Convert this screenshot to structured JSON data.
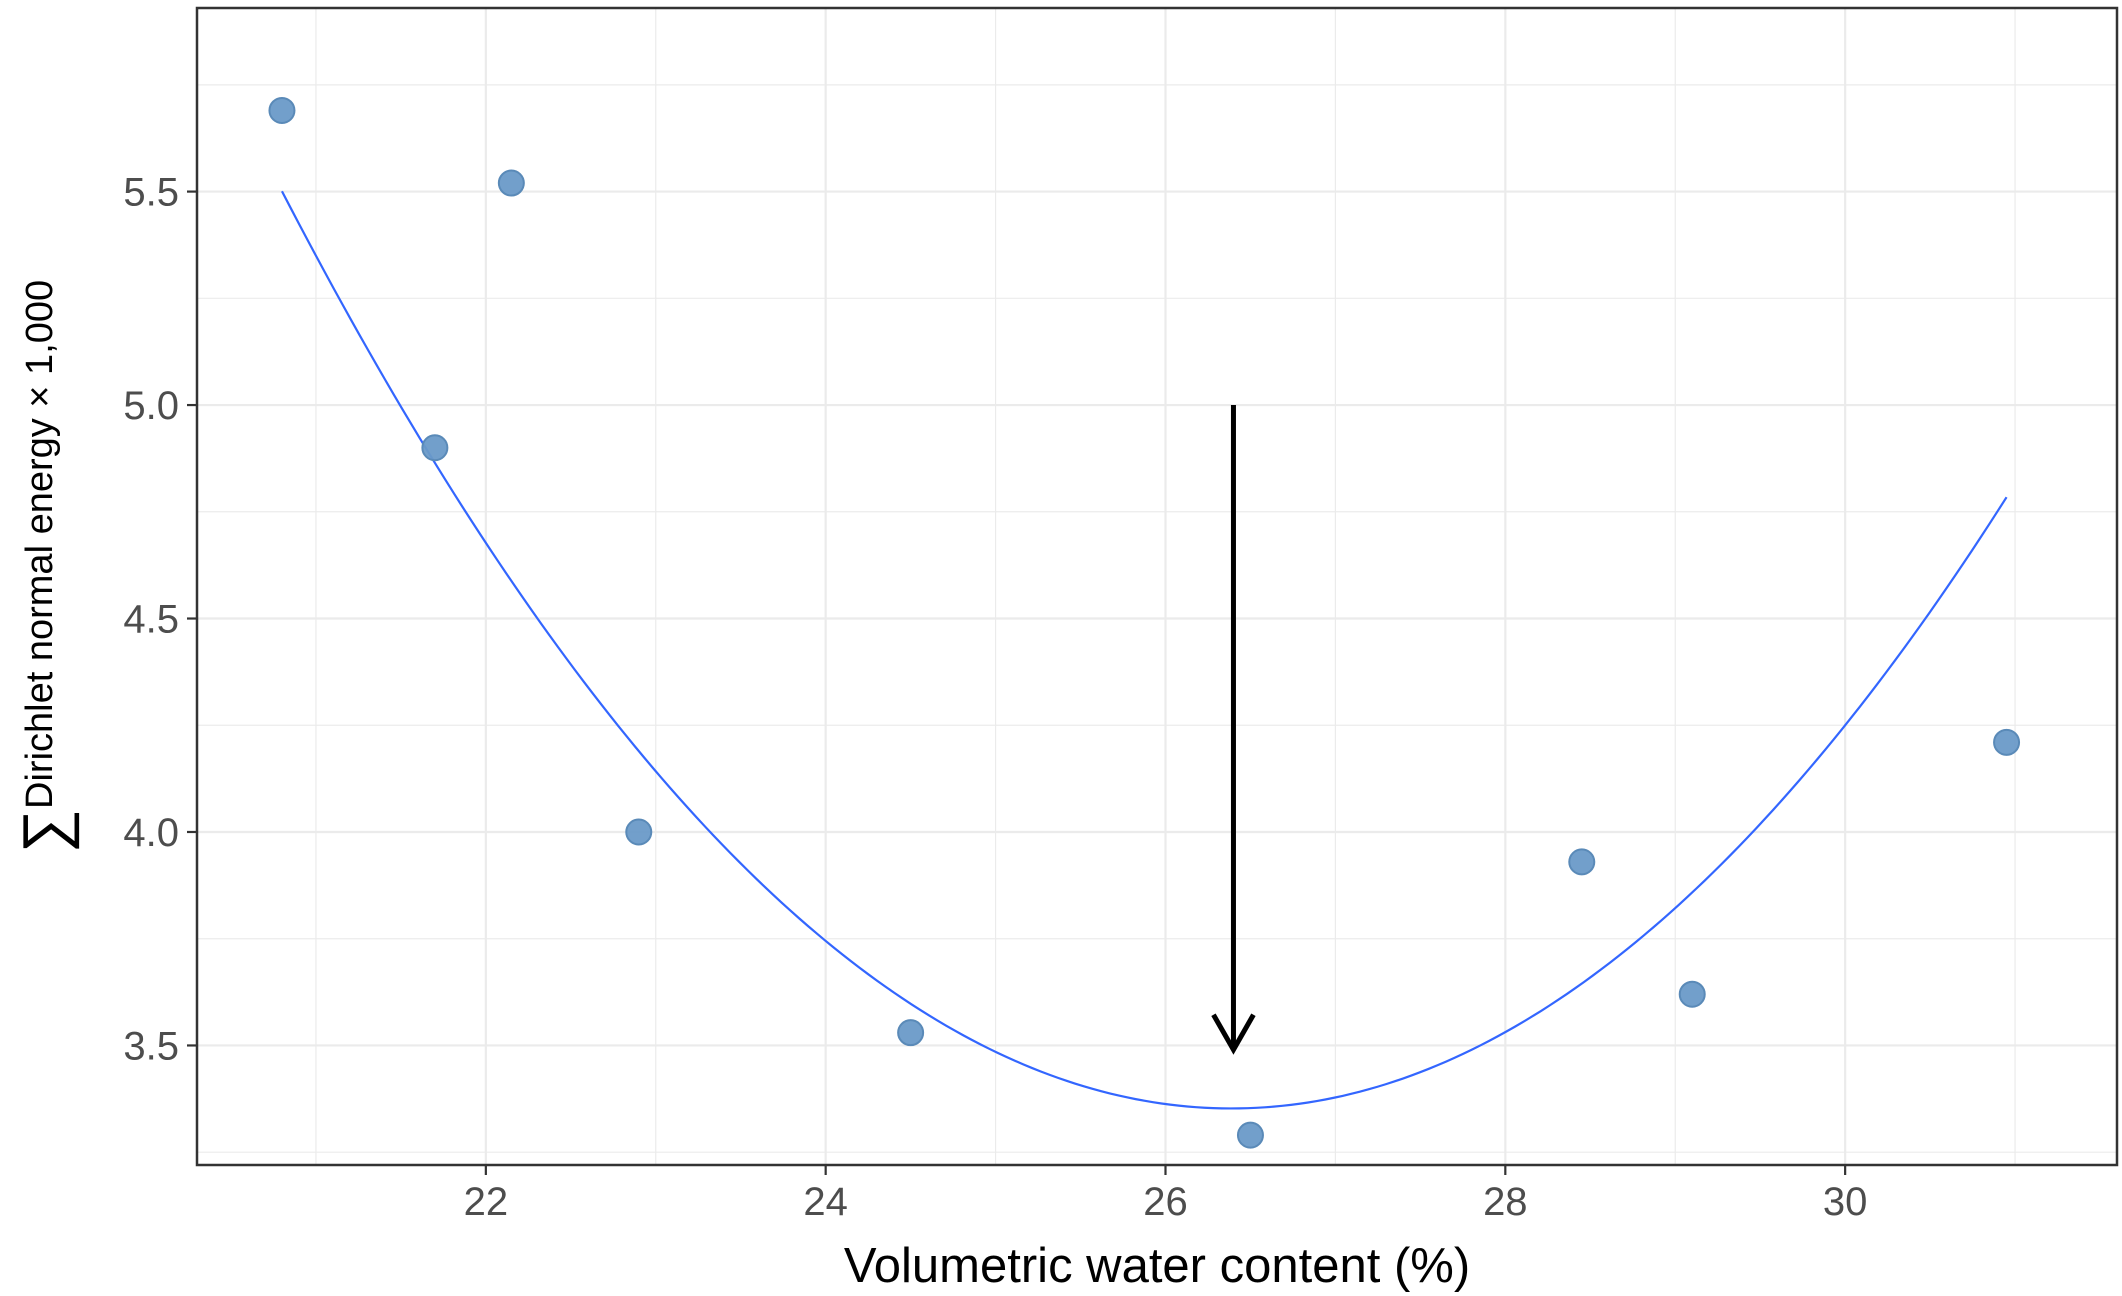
{
  "chart_data": {
    "type": "scatter",
    "title": "",
    "xlabel": "Volumetric water content (%)",
    "ylabel_main": "Dirichlet normal energy × 1,000",
    "ylabel_symbol": "∑",
    "xlim": [
      20.3,
      31.6
    ],
    "ylim": [
      3.22,
      5.93
    ],
    "x_ticks": [
      22,
      24,
      26,
      28,
      30
    ],
    "x_tick_labels": [
      "22",
      "24",
      "26",
      "28",
      "30"
    ],
    "y_ticks": [
      3.5,
      4.0,
      4.5,
      5.0,
      5.5
    ],
    "y_tick_labels": [
      "3.5",
      "4.0",
      "4.5",
      "5.0",
      "5.5"
    ],
    "grid": true,
    "series": [
      {
        "points": [
          {
            "x": 20.8,
            "y": 5.69
          },
          {
            "x": 21.7,
            "y": 4.9
          },
          {
            "x": 22.15,
            "y": 5.52
          },
          {
            "x": 22.9,
            "y": 4.0
          },
          {
            "x": 24.5,
            "y": 3.53
          },
          {
            "x": 26.5,
            "y": 3.29
          },
          {
            "x": 28.45,
            "y": 3.93
          },
          {
            "x": 29.1,
            "y": 3.62
          },
          {
            "x": 30.95,
            "y": 4.21
          }
        ]
      }
    ],
    "fit_curve": {
      "type": "quadratic",
      "coefficients": {
        "a": 0.0688,
        "b": -3.631,
        "c": 51.26
      },
      "x_range": [
        20.8,
        30.95
      ]
    },
    "annotation": {
      "type": "arrow",
      "x": 26.4,
      "y_start": 5.0,
      "y_end": 3.49
    },
    "colors": {
      "points": "#6a9ac8",
      "point_edge": "#5a8ab8",
      "fit_line": "#3366ff",
      "arrow": "#000000",
      "grid": "#ebebeb",
      "panel_border": "#333333"
    }
  }
}
